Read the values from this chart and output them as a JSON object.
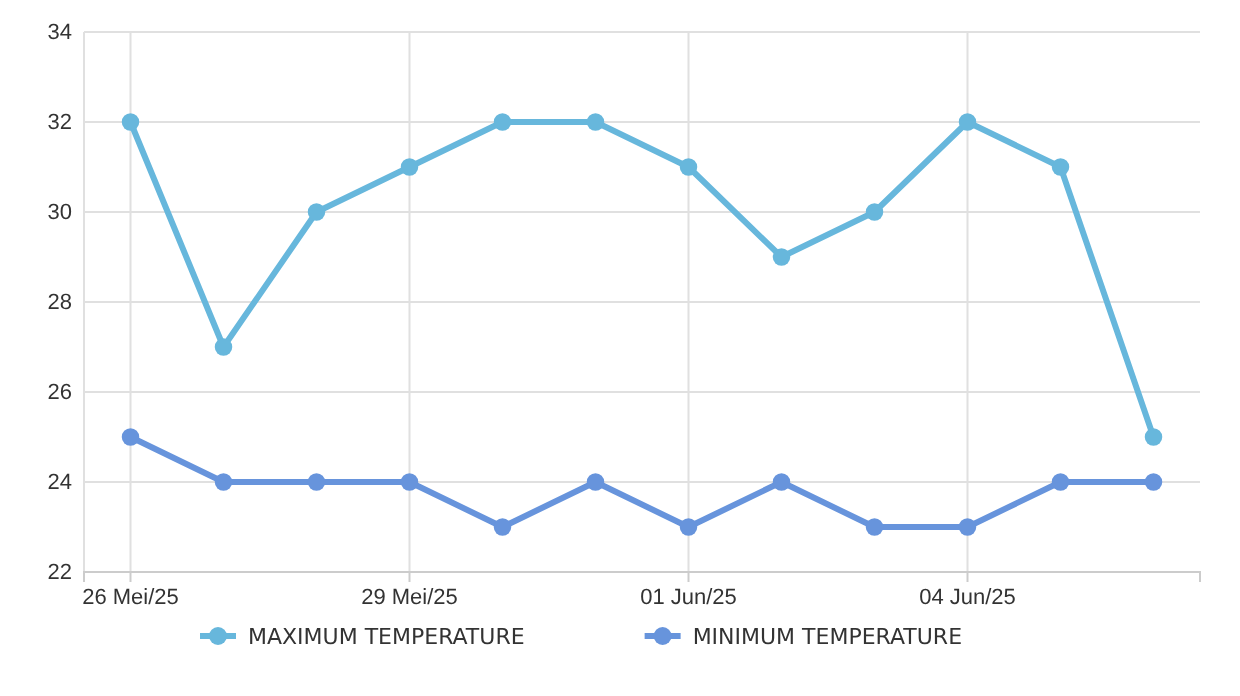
{
  "chart_data": {
    "type": "line",
    "x": [
      "--05-26",
      "--05-27",
      "--05-28",
      "--05-29",
      "--05-30",
      "--05-31",
      "--06-01",
      "--06-02",
      "--06-03",
      "--06-04",
      "--06-05",
      "--06-06"
    ],
    "series": [
      {
        "name": "MAXIMUM TEMPERATURE",
        "color": "#67b7dc",
        "values": [
          32,
          27,
          30,
          31,
          32,
          32,
          31,
          29,
          30,
          32,
          31,
          25
        ]
      },
      {
        "name": "MINIMUM TEMPERATURE",
        "color": "#6794dc",
        "values": [
          25,
          24,
          24,
          24,
          23,
          24,
          23,
          24,
          23,
          23,
          24,
          24
        ]
      }
    ],
    "xlim": [
      "--05-25T12:00",
      "--06-06T12:00"
    ],
    "xticks": [
      {
        "value": "--05-26",
        "label": "26 Mei/25"
      },
      {
        "value": "--05-29",
        "label": "29 Mei/25"
      },
      {
        "value": "--06-01",
        "label": "01 Jun/25"
      },
      {
        "value": "--06-04",
        "label": "04 Jun/25"
      }
    ],
    "ylim": [
      22,
      34
    ],
    "yticks": [
      22,
      24,
      26,
      28,
      30,
      32,
      34
    ],
    "grid": true,
    "legend": "bottom",
    "marker": "circle",
    "line_style": "solid"
  }
}
